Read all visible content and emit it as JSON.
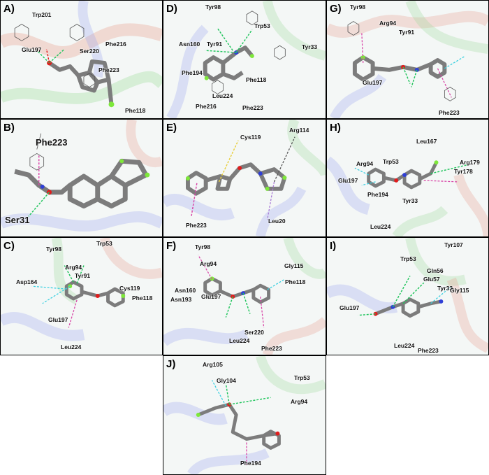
{
  "panels": {
    "A": {
      "label": "A)",
      "residues": [
        "Trp201",
        "Phe216",
        "Glu197",
        "Ser220",
        "Phe223",
        "Phe118"
      ]
    },
    "B": {
      "label": "B)",
      "residues": [
        "Phe223",
        "Ser31"
      ]
    },
    "C": {
      "label": "C)",
      "residues": [
        "Tyr98",
        "Trp53",
        "Arg94",
        "Tyr91",
        "Asp164",
        "Cys119",
        "Phe118",
        "Glu197",
        "Leu224"
      ]
    },
    "D": {
      "label": "D)",
      "residues": [
        "Tyr98",
        "Trp53",
        "Asn160",
        "Tyr91",
        "Tyr33",
        "Phe194",
        "Phe118",
        "Leu224",
        "Phe216",
        "Phe223"
      ]
    },
    "E": {
      "label": "E)",
      "residues": [
        "Cys119",
        "Arg114",
        "Phe223",
        "Leu20"
      ]
    },
    "F": {
      "label": "F)",
      "residues": [
        "Tyr98",
        "Arg94",
        "Gly115",
        "Phe118",
        "Asn160",
        "Asn193",
        "Glu197",
        "Ser220",
        "Leu224",
        "Phe223"
      ]
    },
    "G": {
      "label": "G)",
      "residues": [
        "Tyr98",
        "Arg94",
        "Tyr91",
        "Glu197",
        "Phe223"
      ]
    },
    "H": {
      "label": "H)",
      "residues": [
        "Leu167",
        "Arg94",
        "Arg179",
        "Trp53",
        "Tyr178",
        "Glu197",
        "Phe194",
        "Tyr33",
        "Leu224"
      ]
    },
    "I": {
      "label": "I)",
      "residues": [
        "Tyr107",
        "Trp53",
        "Gln56",
        "Glu57",
        "Tyr33",
        "Gly115",
        "Glu197",
        "Leu224",
        "Phe223"
      ]
    },
    "J": {
      "label": "J)",
      "residues": [
        "Arg105",
        "Gly104",
        "Trp53",
        "Arg94",
        "Phe194"
      ]
    }
  },
  "colors": {
    "ligand": "#8a8a8a",
    "hbond": "#22c55e",
    "pi_contact": "#d946a8",
    "halogen": "#39d0e0",
    "oxygen": "#e11d1d",
    "nitrogen": "#2f3fd6",
    "fluorine": "#7ee83a",
    "ribbon_red": "#e07a6a",
    "ribbon_blue": "#7f8fe8",
    "ribbon_green": "#8fd48a",
    "ribbon_yellow": "#e9e07a"
  }
}
